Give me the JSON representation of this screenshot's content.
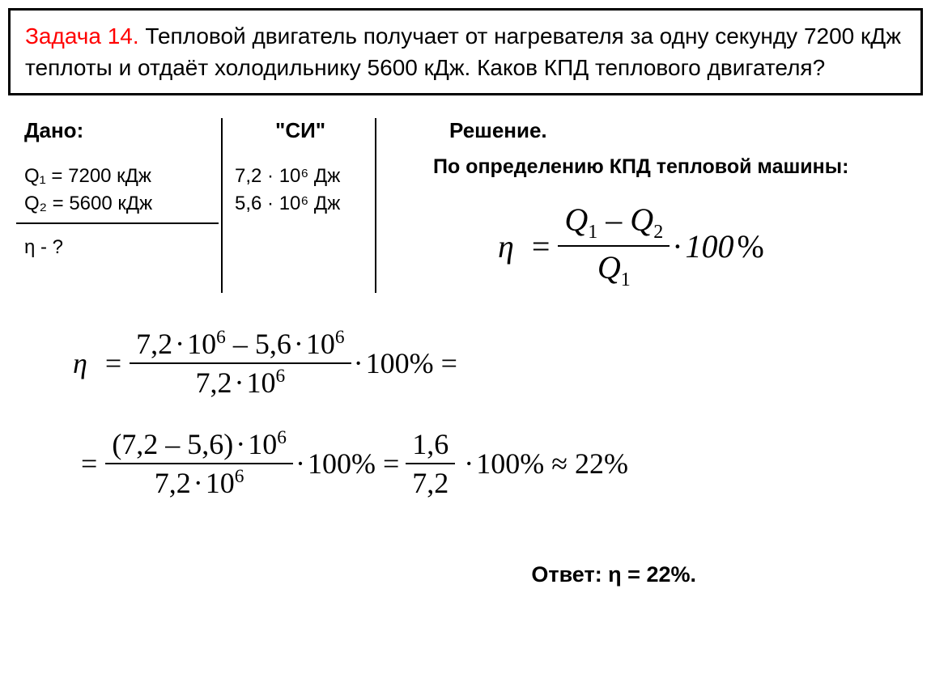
{
  "problem": {
    "title": "Задача 14. ",
    "text": "Тепловой двигатель получает от нагревателя за одну секунду 7200 кДж теплоты и отдаёт холодильнику 5600 кДж. Каков КПД теплового двигателя?"
  },
  "given": {
    "header": "Дано:",
    "q1": "Q₁ = 7200 кДж",
    "q2": "Q₂ = 5600 кДж",
    "find": "η - ?"
  },
  "si": {
    "header": "\"СИ\"",
    "q1": "7,2 · 10⁶ Дж",
    "q2": "5,6 · 10⁶ Дж"
  },
  "solution": {
    "header": "Решение.",
    "definition": "По определению КПД тепловой машины:"
  },
  "formula": {
    "eta": "η",
    "eq": "=",
    "q1": "Q",
    "sub1": "1",
    "minus": "–",
    "q2": "Q",
    "sub2": "2",
    "denom_q": "Q",
    "denom_sub": "1",
    "mult": "·100",
    "percent": "%"
  },
  "calc1": {
    "num": "7,2·10⁶ – 5,6·10⁶",
    "den": "7,2·10⁶",
    "suffix": "·100% ="
  },
  "calc2": {
    "num1": "(7,2 – 5,6)·10⁶",
    "den1": "7,2·10⁶",
    "mid": "·100% =",
    "num2": "1,6",
    "den2": "7,2",
    "suffix": "·100% ≈ 22%"
  },
  "answer": "Ответ: η = 22%.",
  "colors": {
    "title_color": "#ff0000",
    "text_color": "#000000",
    "border_color": "#000000",
    "background": "#ffffff"
  }
}
